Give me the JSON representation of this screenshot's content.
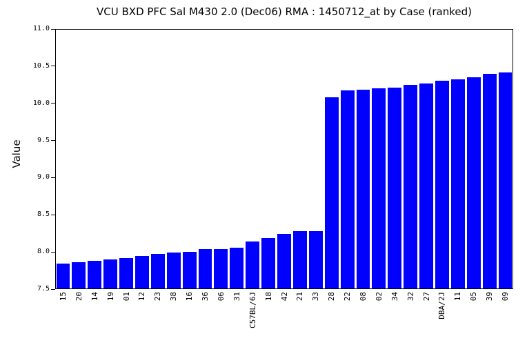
{
  "chart_data": {
    "type": "bar",
    "title": "VCU BXD PFC Sal M430 2.0 (Dec06) RMA : 1450712_at by Case (ranked)",
    "xlabel": "",
    "ylabel": "Value",
    "categories": [
      "15",
      "20",
      "14",
      "19",
      "01",
      "12",
      "23",
      "38",
      "16",
      "36",
      "06",
      "31",
      "C57BL/6J",
      "18",
      "42",
      "21",
      "33",
      "28",
      "22",
      "08",
      "02",
      "34",
      "32",
      "27",
      "DBA/2J",
      "11",
      "05",
      "39",
      "09"
    ],
    "values": [
      7.83,
      7.85,
      7.87,
      7.89,
      7.91,
      7.94,
      7.96,
      7.98,
      7.99,
      8.03,
      8.03,
      8.05,
      8.13,
      8.18,
      8.23,
      8.27,
      8.27,
      10.07,
      10.16,
      10.17,
      10.19,
      10.2,
      10.24,
      10.26,
      10.29,
      10.31,
      10.34,
      10.39,
      10.41
    ],
    "ylim": [
      7.5,
      11.0
    ],
    "ytick_labels": [
      "7.5",
      "8.0",
      "8.5",
      "9.0",
      "9.5",
      "10.0",
      "10.5",
      "11.0"
    ],
    "grid": false,
    "legend_position": "none",
    "bar_color": "#0000ff",
    "axis_color": "#000000",
    "background_color": "#ffffff"
  }
}
